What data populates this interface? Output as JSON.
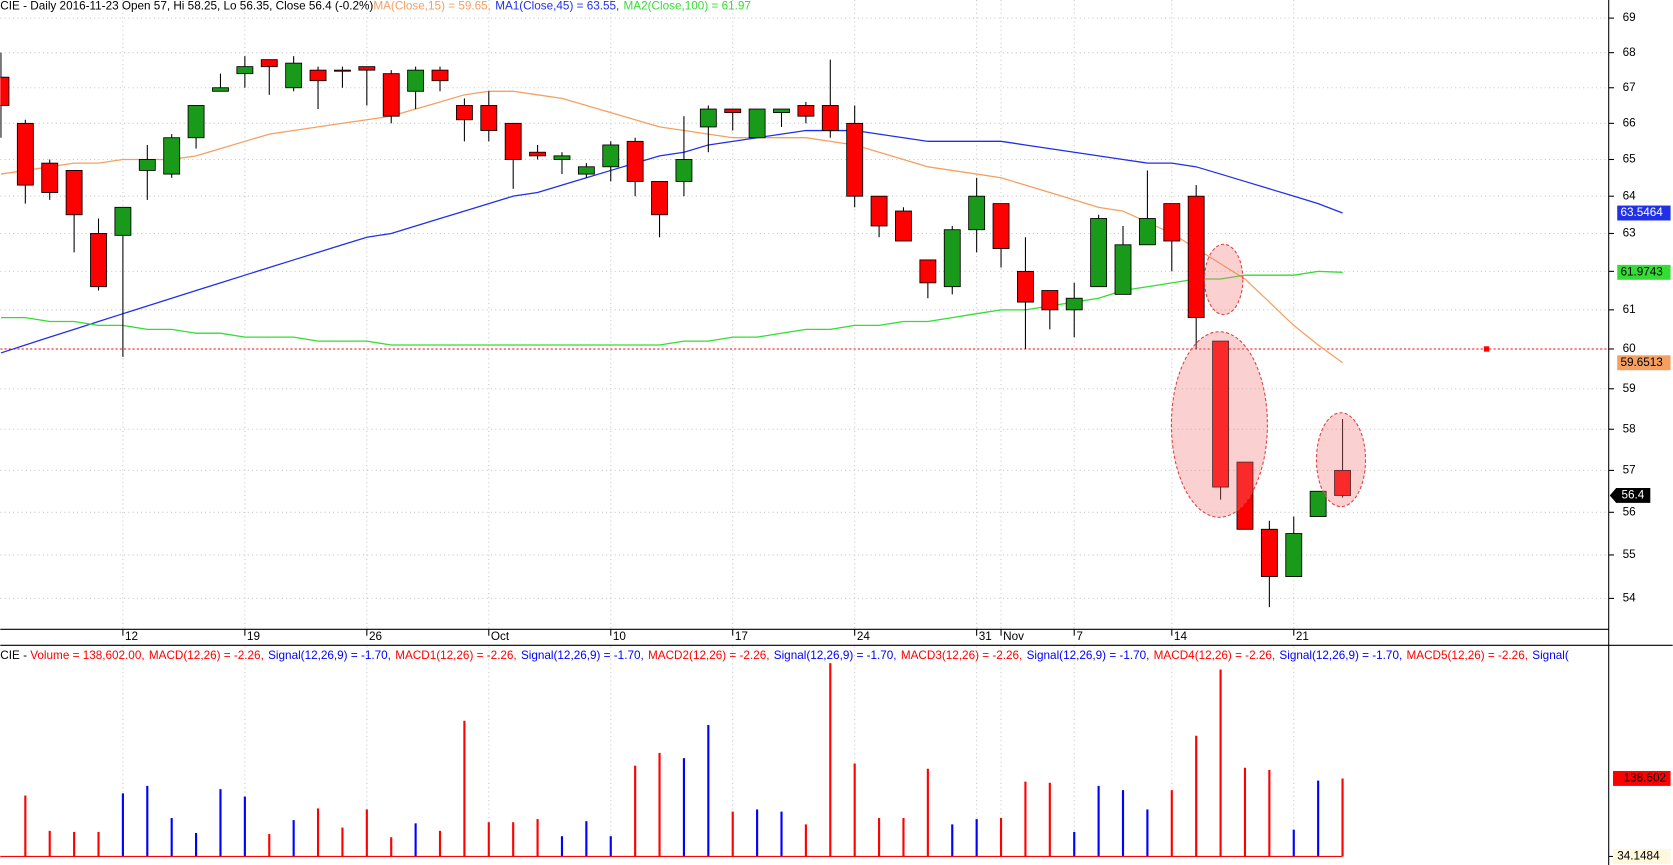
{
  "chart_data": [
    {
      "type": "candlestick",
      "title": "CIE - Daily 2016-11-23 Open 57, Hi 58.25, Lo 56.35, Close 56.4 (-0.2%)",
      "categories": [
        null,
        null,
        null,
        null,
        null,
        "12",
        null,
        null,
        null,
        null,
        "19",
        null,
        null,
        null,
        null,
        "26",
        null,
        null,
        null,
        null,
        "Oct",
        null,
        null,
        null,
        null,
        "10",
        null,
        null,
        null,
        null,
        "17",
        null,
        null,
        null,
        null,
        "24",
        null,
        null,
        null,
        null,
        "31",
        "Nov",
        null,
        null,
        "7",
        null,
        null,
        null,
        "14",
        null,
        null,
        null,
        null,
        "21",
        null,
        null
      ],
      "open": [
        67.3,
        66.0,
        64.9,
        64.7,
        63.0,
        62.95,
        64.7,
        64.6,
        65.6,
        66.9,
        67.4,
        67.8,
        67.0,
        67.5,
        67.5,
        67.6,
        67.4,
        66.9,
        67.5,
        66.5,
        66.5,
        66.0,
        65.2,
        65.0,
        64.6,
        64.8,
        65.5,
        64.4,
        64.4,
        65.9,
        66.4,
        65.6,
        66.3,
        66.5,
        66.5,
        66.0,
        64.0,
        63.6,
        62.3,
        61.6,
        63.1,
        63.8,
        62.0,
        61.5,
        61.0,
        61.6,
        61.4,
        62.7,
        63.8,
        64.0,
        60.2,
        57.2,
        55.6,
        54.5,
        55.9,
        57
      ],
      "high": [
        68.0,
        66.1,
        65.0,
        64.7,
        63.4,
        63.7,
        65.4,
        65.7,
        66.5,
        67.4,
        67.9,
        67.8,
        67.9,
        67.6,
        67.6,
        67.6,
        67.5,
        67.6,
        67.6,
        66.7,
        66.9,
        66.0,
        65.4,
        65.2,
        64.9,
        65.5,
        65.6,
        64.4,
        66.2,
        66.5,
        66.4,
        66.4,
        66.4,
        66.6,
        67.8,
        66.5,
        64.0,
        63.7,
        62.3,
        63.2,
        64.5,
        63.8,
        62.9,
        61.5,
        61.7,
        63.5,
        63.2,
        64.7,
        63.8,
        64.3,
        60.2,
        57.2,
        55.8,
        55.9,
        56.5,
        58.25
      ],
      "low": [
        65.6,
        63.8,
        63.9,
        62.5,
        61.5,
        59.8,
        63.9,
        64.5,
        65.3,
        66.9,
        67.0,
        66.8,
        66.9,
        66.4,
        67.0,
        66.5,
        66.0,
        66.4,
        66.9,
        65.5,
        65.5,
        64.2,
        65.0,
        64.6,
        64.5,
        64.4,
        64.0,
        62.9,
        64.0,
        65.2,
        65.8,
        65.6,
        65.9,
        66.0,
        65.6,
        63.7,
        62.9,
        62.8,
        61.3,
        61.4,
        62.5,
        62.1,
        60.0,
        60.5,
        60.3,
        61.6,
        61.4,
        62.7,
        62.0,
        60.0,
        56.3,
        55.6,
        53.8,
        54.5,
        55.9,
        56.35
      ],
      "close": [
        66.5,
        64.3,
        64.1,
        63.5,
        61.6,
        63.7,
        65.0,
        65.6,
        66.5,
        67.0,
        67.6,
        67.6,
        67.7,
        67.2,
        67.5,
        67.5,
        66.2,
        67.5,
        67.2,
        66.1,
        65.8,
        65.0,
        65.1,
        65.1,
        64.8,
        65.4,
        64.4,
        63.5,
        65.0,
        66.4,
        66.3,
        66.4,
        66.4,
        66.2,
        65.8,
        64.0,
        63.2,
        62.8,
        61.7,
        63.1,
        64.0,
        62.6,
        61.2,
        61.0,
        61.3,
        63.4,
        62.7,
        63.4,
        62.8,
        60.8,
        56.6,
        55.6,
        54.5,
        55.5,
        56.5,
        56.4
      ],
      "up_color": "#1a9a1a",
      "down_color": "#ff0000",
      "series": [
        {
          "name": "MA(Close,15) = 59.65,",
          "color": "#f5a060",
          "label_text_color": "#000000",
          "values": [
            64.6,
            64.7,
            64.8,
            64.9,
            64.9,
            65.0,
            65.0,
            65.0,
            65.1,
            65.3,
            65.5,
            65.7,
            65.8,
            65.9,
            66.0,
            66.1,
            66.2,
            66.4,
            66.6,
            66.8,
            66.9,
            66.9,
            66.8,
            66.7,
            66.5,
            66.3,
            66.1,
            65.9,
            65.8,
            65.7,
            65.6,
            65.6,
            65.6,
            65.6,
            65.5,
            65.4,
            65.2,
            65.0,
            64.8,
            64.7,
            64.6,
            64.5,
            64.3,
            64.1,
            63.9,
            63.7,
            63.6,
            63.3,
            63.0,
            62.6,
            62.2,
            61.8,
            61.2,
            60.6,
            60.1,
            59.6513
          ]
        },
        {
          "name": "MA1(Close,45) = 63.55,",
          "color": "#2030e8",
          "label_text_color": "#ffffff",
          "values": [
            59.9,
            60.1,
            60.3,
            60.5,
            60.7,
            60.9,
            61.1,
            61.3,
            61.5,
            61.7,
            61.9,
            62.1,
            62.3,
            62.5,
            62.7,
            62.9,
            63.0,
            63.2,
            63.4,
            63.6,
            63.8,
            64.0,
            64.1,
            64.3,
            64.5,
            64.7,
            64.9,
            65.1,
            65.2,
            65.4,
            65.5,
            65.6,
            65.7,
            65.8,
            65.8,
            65.8,
            65.7,
            65.6,
            65.5,
            65.5,
            65.5,
            65.5,
            65.4,
            65.3,
            65.2,
            65.1,
            65.0,
            64.9,
            64.9,
            64.8,
            64.6,
            64.4,
            64.2,
            64.0,
            63.8,
            63.5464
          ]
        },
        {
          "name": "MA2(Close,100) = 61.97",
          "color": "#33dd33",
          "label_text_color": "#000000",
          "values": [
            60.8,
            60.8,
            60.7,
            60.7,
            60.6,
            60.6,
            60.5,
            60.5,
            60.4,
            60.4,
            60.3,
            60.3,
            60.3,
            60.2,
            60.2,
            60.2,
            60.1,
            60.1,
            60.1,
            60.1,
            60.1,
            60.1,
            60.1,
            60.1,
            60.1,
            60.1,
            60.1,
            60.1,
            60.2,
            60.2,
            60.3,
            60.3,
            60.4,
            60.5,
            60.5,
            60.6,
            60.6,
            60.7,
            60.7,
            60.8,
            60.9,
            61.0,
            61.0,
            61.1,
            61.2,
            61.3,
            61.5,
            61.6,
            61.7,
            61.8,
            61.8,
            61.9,
            61.9,
            61.9,
            62.0,
            61.9743
          ]
        }
      ],
      "hline": {
        "value": 60,
        "color": "#ff0000"
      },
      "ylim": [
        53.3,
        69.53
      ],
      "yticks": [
        54,
        55,
        56,
        57,
        58,
        59,
        60,
        61,
        62,
        63,
        64,
        65,
        66,
        67,
        68,
        69
      ],
      "log_scale": true,
      "grid": true
    },
    {
      "type": "bar",
      "title": "CIE - ",
      "series": [
        {
          "name": "Volume = 138,602.00,",
          "color": "#ff0000",
          "up_color": "#0000ff",
          "down_color": "#ff0000",
          "values": [
            null,
            115.7,
            68.5,
            67,
            67,
            118.6,
            128.6,
            85.6,
            65.6,
            124.3,
            114.3,
            64.2,
            82.8,
            98.5,
            72.8,
            97.1,
            59.9,
            78.5,
            68.5,
            215.8,
            80,
            80,
            84.2,
            61.3,
            81.4,
            61.3,
            155.7,
            172.9,
            165.8,
            210.1,
            94.2,
            97.1,
            94.2,
            77.1,
            293,
            158.6,
            85.6,
            85.6,
            151.5,
            77.1,
            84.2,
            85.6,
            134.3,
            132.9,
            67,
            128.6,
            122.9,
            97.1,
            122.9,
            195.8,
            284.5,
            152.9,
            150,
            70,
            135.7,
            138.602
          ]
        }
      ],
      "indicators": [
        {
          "text": "MACD(12,26) = -2.26,",
          "color": "#ff0000"
        },
        {
          "text": "Signal(12,26,9) = -1.70,",
          "color": "#0000ff"
        },
        {
          "text": "MACD1(12,26) = -2.26,",
          "color": "#ff0000"
        },
        {
          "text": "Signal(12,26,9) = -1.70,",
          "color": "#0000ff"
        },
        {
          "text": "MACD2(12,26) = -2.26,",
          "color": "#ff0000"
        },
        {
          "text": "Signal(12,26,9) = -1.70,",
          "color": "#0000ff"
        },
        {
          "text": "MACD3(12,26) = -2.26,",
          "color": "#ff0000"
        },
        {
          "text": "Signal(12,26,9) = -1.70,",
          "color": "#0000ff"
        },
        {
          "text": "MACD4(12,26) = -2.26,",
          "color": "#ff0000"
        },
        {
          "text": "Signal(12,26,9) = -1.70,",
          "color": "#0000ff"
        },
        {
          "text": "MACD5(12,26) = -2.26,",
          "color": "#ff0000"
        },
        {
          "text": "Signal(",
          "color": "#0000ff"
        }
      ],
      "ylim": [
        34.1484,
        314
      ],
      "yticks": [
        34.1484
      ]
    }
  ]
}
